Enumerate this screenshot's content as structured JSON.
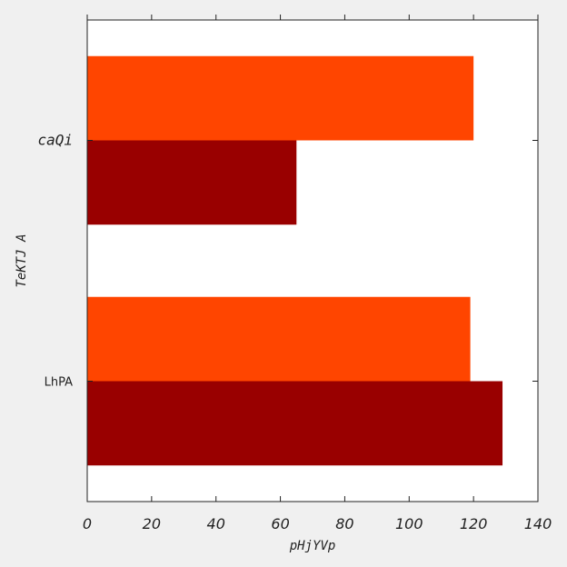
{
  "chart_data": {
    "type": "bar",
    "orientation": "horizontal",
    "title": "",
    "xlabel": "pHjYVp",
    "ylabel": "TeKTJ  A",
    "categories": [
      "caQi",
      "LhPA"
    ],
    "series": [
      {
        "values": [
          120,
          119
        ],
        "color": "#ff4500"
      },
      {
        "values": [
          65,
          129
        ],
        "color": "#990000"
      }
    ],
    "xlim": [
      0,
      140
    ],
    "xticks": [
      "0",
      "20",
      "40",
      "60",
      "80",
      "100",
      "120",
      "140"
    ],
    "grid": false,
    "legend": "none",
    "background": "#ffffff"
  }
}
